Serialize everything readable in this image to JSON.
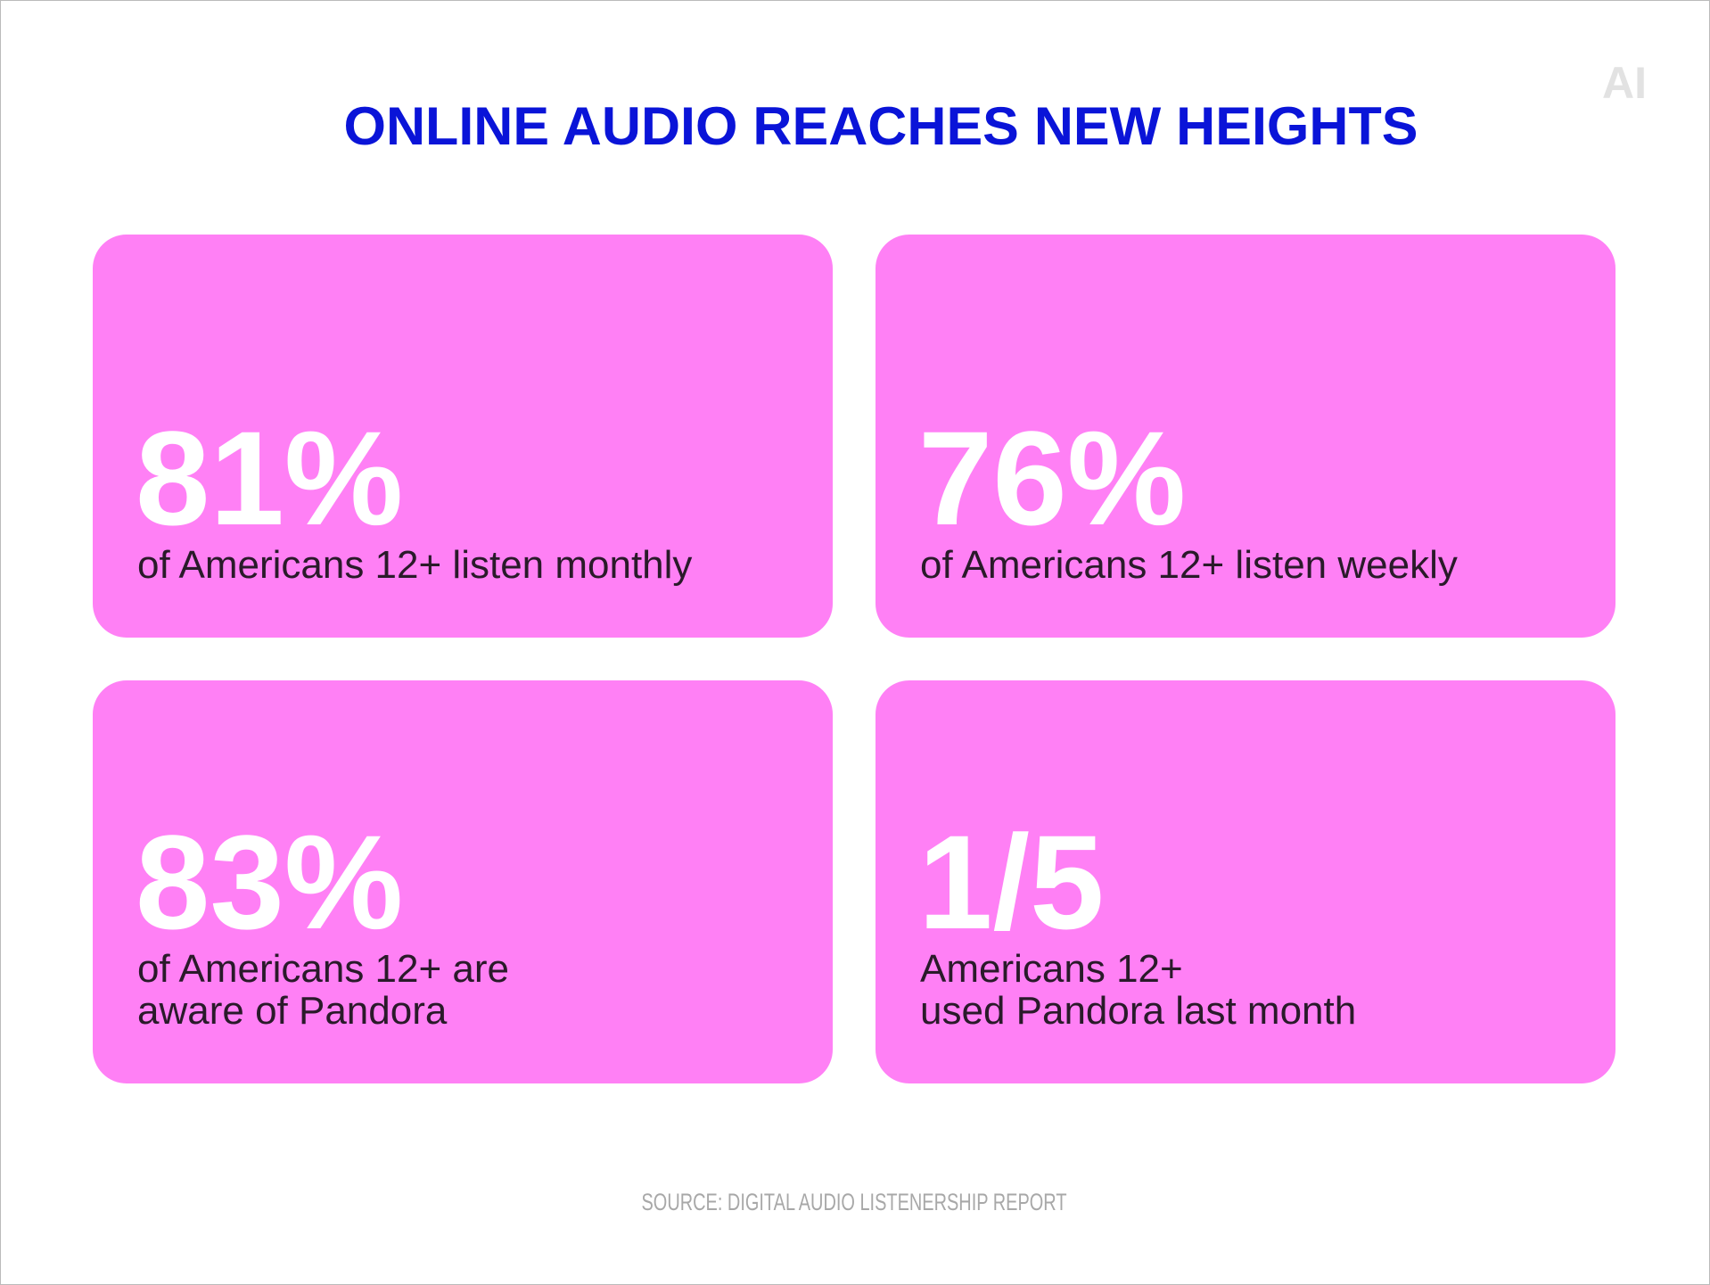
{
  "header": {
    "title": "ONLINE AUDIO REACHES NEW HEIGHTS",
    "logo": "AI"
  },
  "cards": [
    {
      "stat": "81%",
      "lines": [
        "of Americans 12+ listen monthly"
      ]
    },
    {
      "stat": "76%",
      "lines": [
        "of Americans 12+ listen weekly"
      ]
    },
    {
      "stat": "83%",
      "lines": [
        "of Americans 12+ are",
        "aware of Pandora"
      ]
    },
    {
      "stat": "1/5",
      "lines": [
        "Americans 12+",
        "used Pandora last month"
      ]
    }
  ],
  "footer": {
    "source": "SOURCE: DIGITAL AUDIO LISTENERSHIP REPORT"
  }
}
